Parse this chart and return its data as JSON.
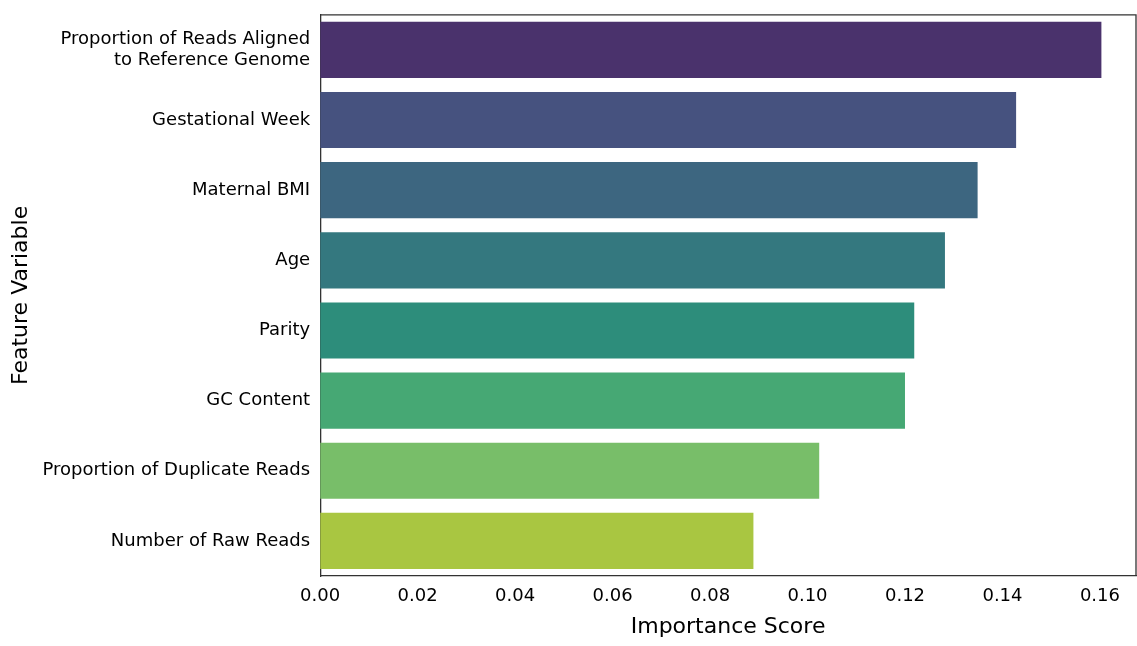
{
  "chart_data": {
    "type": "bar",
    "orientation": "horizontal",
    "xlabel": "Importance Score",
    "ylabel": "Feature Variable",
    "categories": [
      "Proportion of Reads Aligned to Reference Genome",
      "Gestational Week",
      "Maternal BMI",
      "Age",
      "Parity",
      "GC Content",
      "Proportion of Duplicate Reads",
      "Number of Raw Reads"
    ],
    "values": [
      0.1603,
      0.1428,
      0.1349,
      0.1282,
      0.1219,
      0.12,
      0.1024,
      0.0889
    ],
    "colors": [
      "#4a326c",
      "#46527f",
      "#3d6680",
      "#34787f",
      "#2d8d7b",
      "#46a874",
      "#78be69",
      "#a9c641"
    ],
    "xlim": [
      0,
      0.1674
    ],
    "xticks": [
      {
        "value": 0,
        "label": "0.00"
      },
      {
        "value": 0.02,
        "label": "0.02"
      },
      {
        "value": 0.04,
        "label": "0.04"
      },
      {
        "value": 0.06,
        "label": "0.06"
      },
      {
        "value": 0.08,
        "label": "0.08"
      },
      {
        "value": 0.1,
        "label": "0.10"
      },
      {
        "value": 0.12,
        "label": "0.12"
      },
      {
        "value": 0.14,
        "label": "0.14"
      },
      {
        "value": 0.16,
        "label": "0.16"
      }
    ],
    "grid": false
  }
}
